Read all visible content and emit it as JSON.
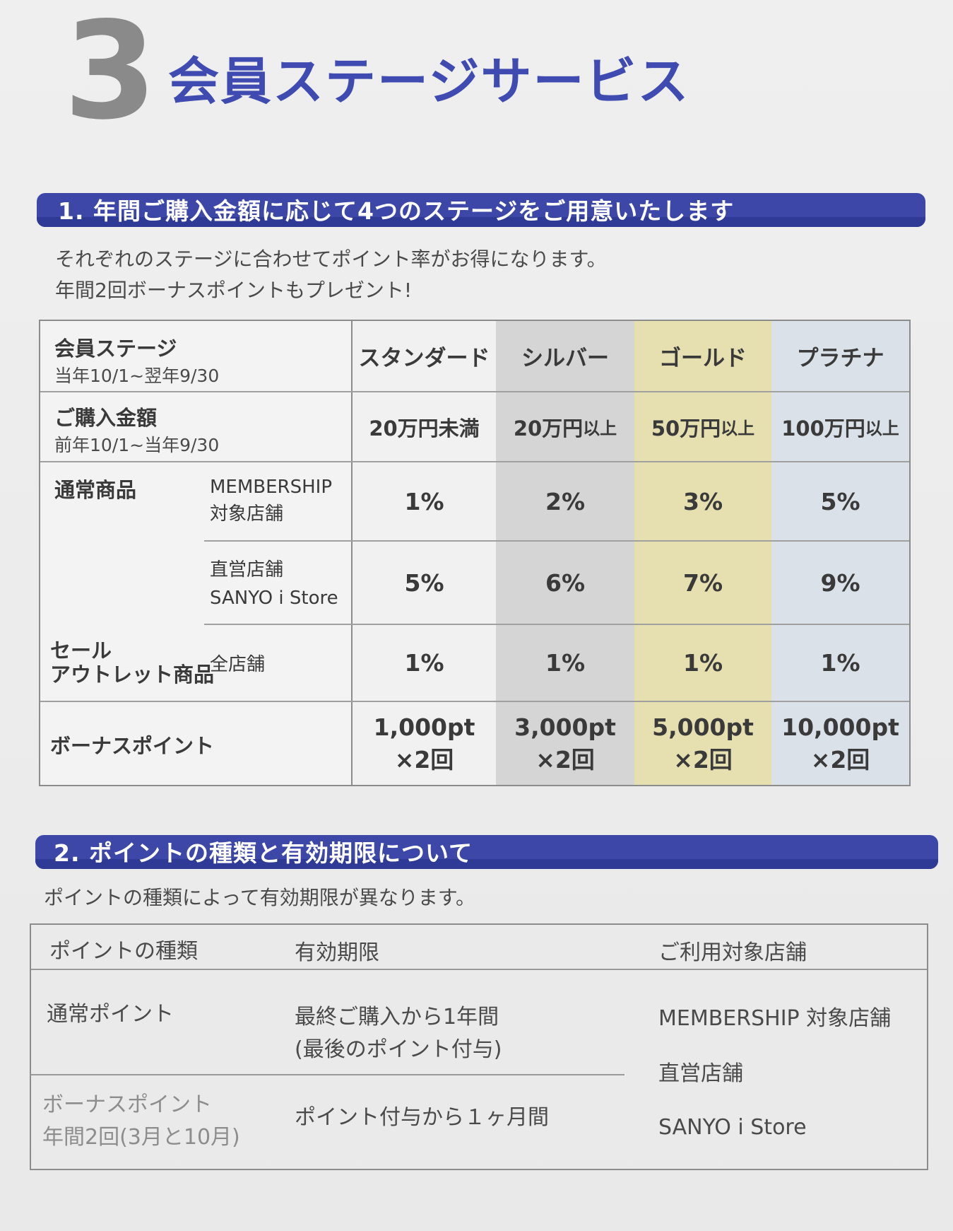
{
  "header": {
    "number": "3",
    "title": "会員ステージサービス"
  },
  "section1": {
    "bar_title": "1. 年間ご購入金額に応じて4つのステージをご用意いたします",
    "desc_line1": "それぞれのステージに合わせてポイント率がお得になります。",
    "desc_line2": "年間2回ボーナスポイントもプレゼント!"
  },
  "stage_table": {
    "row_stage": {
      "label": "会員ステージ",
      "sub": "当年10/1~翌年9/30"
    },
    "row_amount": {
      "label": "ご購入金額",
      "sub": "前年10/1~当年9/30"
    },
    "stages": [
      "スタンダード",
      "シルバー",
      "ゴールド",
      "プラチナ"
    ],
    "amounts": [
      {
        "main": "20万円未満",
        "suffix": ""
      },
      {
        "main": "20万円",
        "suffix": "以上"
      },
      {
        "main": "50万円",
        "suffix": "以上"
      },
      {
        "main": "100万円",
        "suffix": "以上"
      }
    ],
    "regular_label": "通常商品",
    "membership_store_line1": "MEMBERSHIP",
    "membership_store_line2": "対象店舗",
    "membership_rates": [
      "1%",
      "2%",
      "3%",
      "5%"
    ],
    "direct_store_line1": "直営店舗",
    "direct_store_line2": "SANYO i Store",
    "direct_rates": [
      "5%",
      "6%",
      "7%",
      "9%"
    ],
    "sale_label_line1": "セール",
    "sale_label_line2": "アウトレット商品",
    "all_stores_label": "全店舗",
    "sale_rates": [
      "1%",
      "1%",
      "1%",
      "1%"
    ],
    "bonus_label": "ボーナスポイント",
    "bonus_points": [
      "1,000pt",
      "3,000pt",
      "5,000pt",
      "10,000pt"
    ],
    "bonus_times": "×2回",
    "colors": {
      "standard": "#f1f1f1",
      "silver": "#d6d5d6",
      "gold": "#e6dfb0",
      "platinum": "#dbe1e9"
    }
  },
  "section2": {
    "bar_title": "2. ポイントの種類と有効期限について",
    "desc": "ポイントの種類によって有効期限が異なります。"
  },
  "points_table": {
    "headers": [
      "ポイントの種類",
      "有効期限",
      "ご利用対象店舗"
    ],
    "regular": {
      "type": "通常ポイント",
      "expiry_line1": "最終ご購入から1年間",
      "expiry_line2": "(最後のポイント付与)"
    },
    "bonus": {
      "type_line1": "ボーナスポイント",
      "type_line2": "年間2回(3月と10月)",
      "expiry": "ポイント付与から１ヶ月間"
    },
    "stores": [
      "MEMBERSHIP 対象店舗",
      "直営店舗",
      "SANYO i Store"
    ]
  }
}
